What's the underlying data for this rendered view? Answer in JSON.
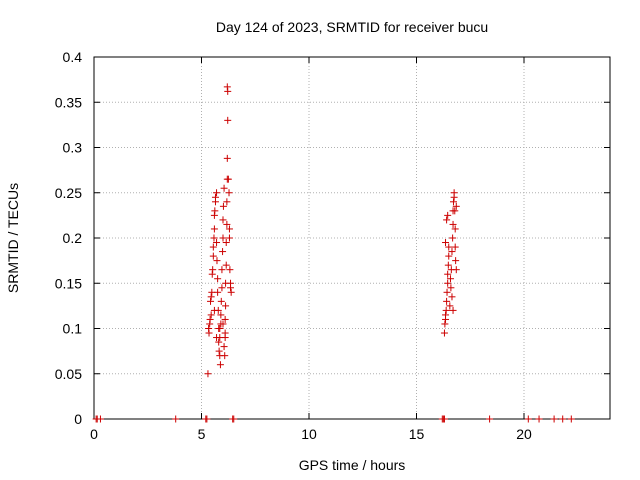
{
  "chart_data": {
    "type": "scatter",
    "title": "Day 124 of 2023, SRMTID for receiver bucu",
    "xlabel": "GPS time / hours",
    "ylabel": "SRMTID / TECUs",
    "xlim": [
      0,
      24
    ],
    "ylim": [
      0,
      0.4
    ],
    "xticks": [
      0,
      5,
      10,
      15,
      20
    ],
    "yticks": [
      0,
      0.05,
      0.1,
      0.15,
      0.2,
      0.25,
      0.3,
      0.35,
      0.4
    ],
    "grid": true,
    "marker": "+",
    "colors": {
      "series": "#cc0000",
      "grid": "#b0b0b0",
      "axis": "#000000"
    },
    "series": [
      {
        "points": [
          [
            0.1,
            0
          ],
          [
            0.15,
            0
          ],
          [
            0.3,
            0
          ],
          [
            3.8,
            0
          ],
          [
            5.2,
            0
          ],
          [
            5.25,
            0
          ],
          [
            6.45,
            0
          ],
          [
            6.5,
            0
          ],
          [
            16.2,
            0
          ],
          [
            16.25,
            0
          ],
          [
            16.3,
            0
          ],
          [
            18.4,
            0
          ],
          [
            20.2,
            0
          ],
          [
            20.7,
            0
          ],
          [
            21.4,
            0
          ],
          [
            21.8,
            0
          ],
          [
            22.2,
            0
          ],
          [
            5.3,
            0.05
          ],
          [
            5.35,
            0.095
          ],
          [
            5.38,
            0.105
          ],
          [
            5.4,
            0.11
          ],
          [
            5.42,
            0.13
          ],
          [
            5.45,
            0.135
          ],
          [
            5.48,
            0.14
          ],
          [
            5.5,
            0.16
          ],
          [
            5.52,
            0.165
          ],
          [
            5.55,
            0.18
          ],
          [
            5.55,
            0.19
          ],
          [
            5.58,
            0.2
          ],
          [
            5.6,
            0.21
          ],
          [
            5.6,
            0.225
          ],
          [
            5.62,
            0.23
          ],
          [
            5.65,
            0.24
          ],
          [
            5.65,
            0.245
          ],
          [
            5.7,
            0.25
          ],
          [
            5.7,
            0.195
          ],
          [
            5.72,
            0.175
          ],
          [
            5.75,
            0.155
          ],
          [
            5.75,
            0.14
          ],
          [
            5.78,
            0.12
          ],
          [
            5.8,
            0.1
          ],
          [
            5.8,
            0.085
          ],
          [
            5.82,
            0.075
          ],
          [
            5.85,
            0.07
          ],
          [
            5.85,
            0.09
          ],
          [
            5.88,
            0.06
          ],
          [
            5.9,
            0.105
          ],
          [
            5.9,
            0.115
          ],
          [
            5.92,
            0.13
          ],
          [
            5.95,
            0.145
          ],
          [
            5.95,
            0.165
          ],
          [
            5.98,
            0.185
          ],
          [
            6.0,
            0.2
          ],
          [
            6.0,
            0.22
          ],
          [
            6.02,
            0.235
          ],
          [
            6.05,
            0.255
          ],
          [
            6.05,
            0.08
          ],
          [
            6.08,
            0.07
          ],
          [
            6.1,
            0.09
          ],
          [
            6.1,
            0.11
          ],
          [
            6.12,
            0.125
          ],
          [
            6.12,
            0.15
          ],
          [
            6.15,
            0.17
          ],
          [
            6.15,
            0.195
          ],
          [
            6.18,
            0.215
          ],
          [
            6.18,
            0.24
          ],
          [
            6.2,
            0.265
          ],
          [
            6.2,
            0.288
          ],
          [
            6.22,
            0.33
          ],
          [
            6.22,
            0.362
          ],
          [
            6.2,
            0.367
          ],
          [
            6.25,
            0.265
          ],
          [
            6.28,
            0.25
          ],
          [
            6.3,
            0.2
          ],
          [
            6.3,
            0.21
          ],
          [
            6.32,
            0.165
          ],
          [
            6.35,
            0.15
          ],
          [
            6.35,
            0.145
          ],
          [
            6.38,
            0.14
          ],
          [
            5.33,
            0.1
          ],
          [
            5.45,
            0.115
          ],
          [
            5.6,
            0.12
          ],
          [
            5.7,
            0.09
          ],
          [
            5.85,
            0.1
          ],
          [
            6.0,
            0.105
          ],
          [
            6.1,
            0.095
          ],
          [
            16.3,
            0.095
          ],
          [
            16.32,
            0.105
          ],
          [
            16.35,
            0.11
          ],
          [
            16.35,
            0.115
          ],
          [
            16.38,
            0.12
          ],
          [
            16.4,
            0.13
          ],
          [
            16.42,
            0.14
          ],
          [
            16.45,
            0.15
          ],
          [
            16.45,
            0.16
          ],
          [
            16.48,
            0.17
          ],
          [
            16.5,
            0.18
          ],
          [
            16.5,
            0.19
          ],
          [
            16.4,
            0.22
          ],
          [
            16.45,
            0.225
          ],
          [
            16.55,
            0.125
          ],
          [
            16.6,
            0.145
          ],
          [
            16.62,
            0.165
          ],
          [
            16.65,
            0.185
          ],
          [
            16.68,
            0.2
          ],
          [
            16.7,
            0.215
          ],
          [
            16.7,
            0.23
          ],
          [
            16.72,
            0.24
          ],
          [
            16.75,
            0.25
          ],
          [
            16.75,
            0.245
          ],
          [
            16.78,
            0.23
          ],
          [
            16.8,
            0.21
          ],
          [
            16.8,
            0.19
          ],
          [
            16.82,
            0.175
          ],
          [
            16.85,
            0.165
          ],
          [
            16.7,
            0.12
          ],
          [
            16.65,
            0.135
          ],
          [
            16.58,
            0.155
          ],
          [
            16.85,
            0.235
          ],
          [
            16.35,
            0.195
          ]
        ]
      }
    ]
  }
}
